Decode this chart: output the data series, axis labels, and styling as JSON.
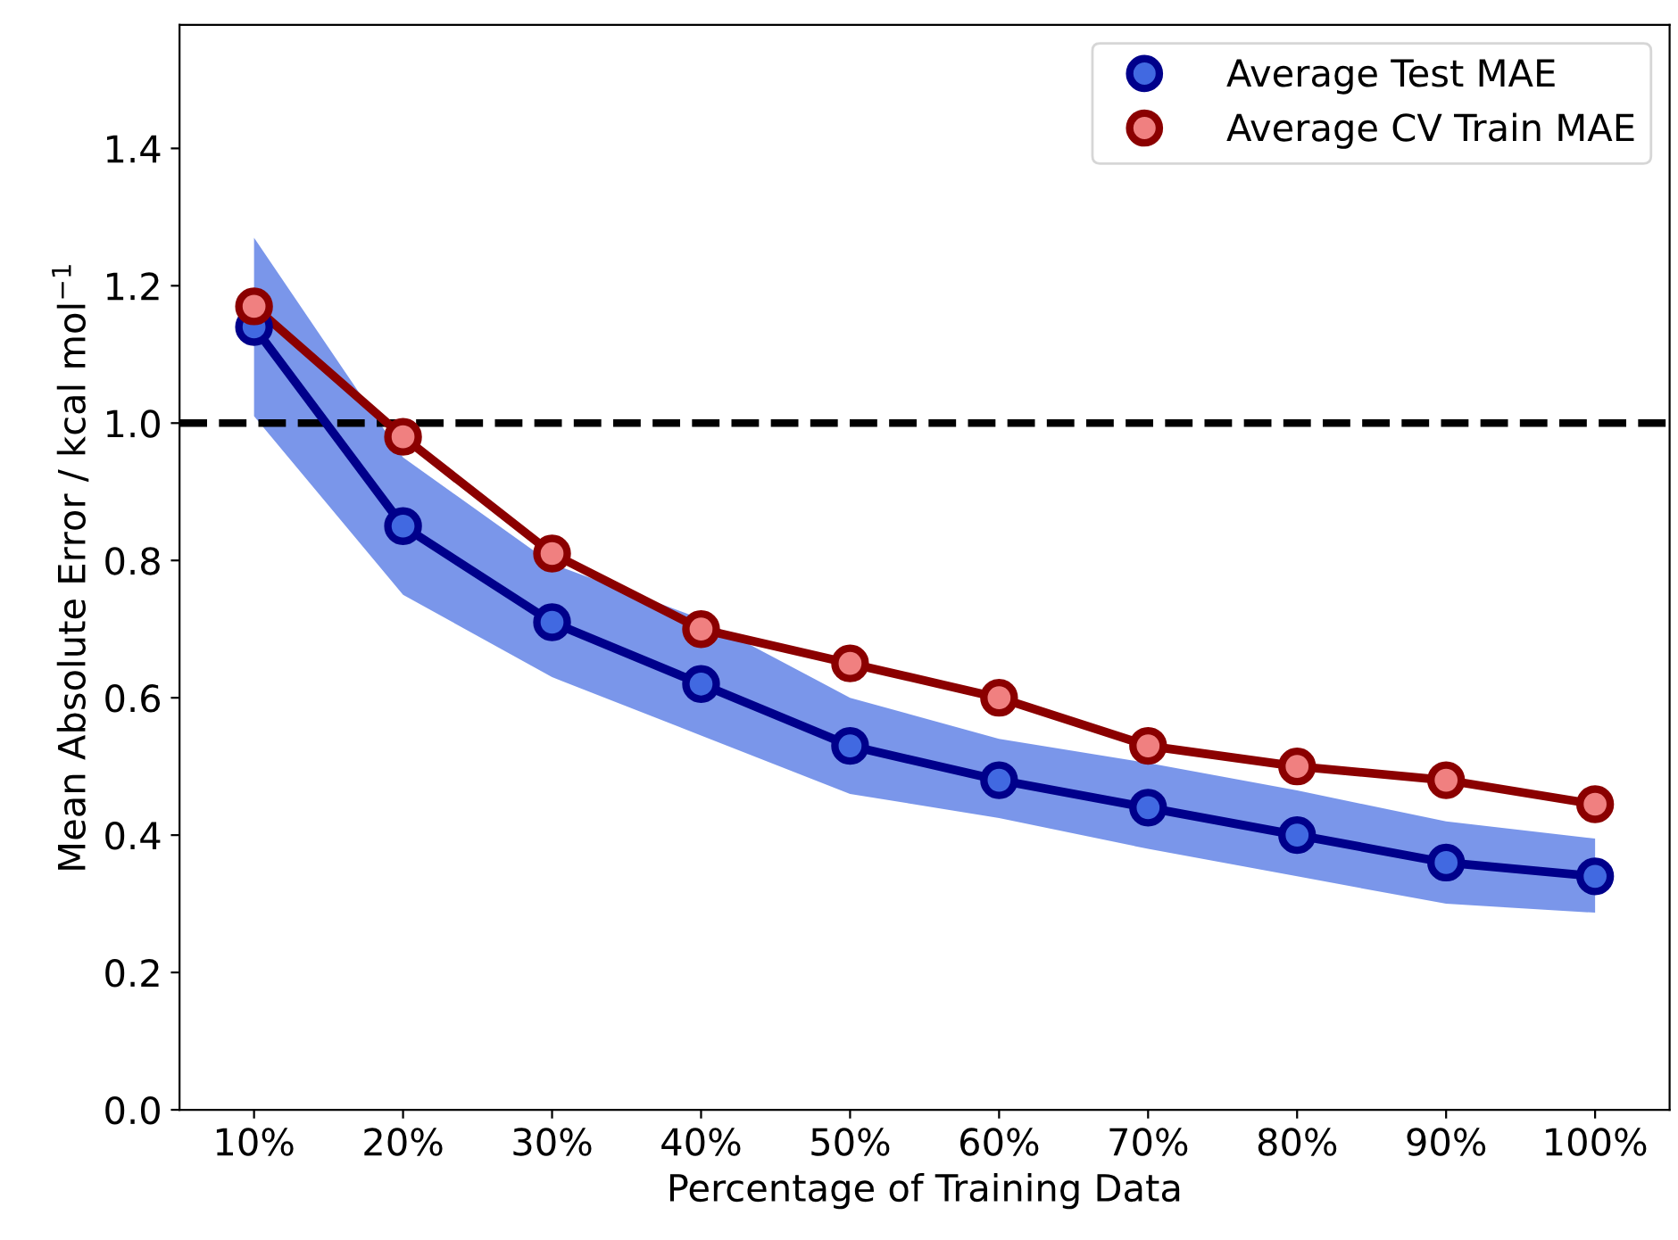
{
  "chart_data": {
    "type": "line",
    "xlabel": "Percentage of Training Data",
    "ylabel": "Mean Absolute Error / kcal mol$^{−1}$",
    "categories": [
      "10%",
      "20%",
      "30%",
      "40%",
      "50%",
      "60%",
      "70%",
      "80%",
      "90%",
      "100%"
    ],
    "series": [
      {
        "name": "Average Test MAE",
        "color": "#00008b",
        "colors": [
          "#4169e1",
          "#4169e1",
          "#4169e1",
          "#4169e1",
          "#4169e1",
          "#4169e1",
          "#4169e1",
          "#4169e1",
          "#4169e1",
          "#4169e1"
        ],
        "values": [
          1.14,
          0.85,
          0.71,
          0.62,
          0.53,
          0.48,
          0.44,
          0.4,
          0.36,
          0.34
        ],
        "lower": [
          1.01,
          0.75,
          0.63,
          0.545,
          0.46,
          0.425,
          0.38,
          0.34,
          0.3,
          0.287
        ],
        "upper": [
          1.27,
          0.95,
          0.795,
          0.715,
          0.6,
          0.54,
          0.505,
          0.465,
          0.42,
          0.395
        ]
      },
      {
        "name": "Average CV Train MAE",
        "color": "#8b0000",
        "colors": [
          "#f08080",
          "#f08080",
          "#f08080",
          "#f08080",
          "#f08080",
          "#f08080",
          "#f08080",
          "#f08080",
          "#f08080",
          "#f08080"
        ],
        "values": [
          1.17,
          0.98,
          0.81,
          0.7,
          0.65,
          0.6,
          0.53,
          0.5,
          0.48,
          0.445
        ]
      }
    ],
    "ylim": [
      0,
      1.58
    ],
    "yticks": [
      {
        "value": 0,
        "label": "0.0"
      },
      0.2,
      0.4,
      0.6,
      0.8,
      {
        "value": 1,
        "label": "1.0"
      },
      1.2,
      1.4
    ],
    "ref_lines": [
      {
        "axis": "y",
        "value": 1.0,
        "color": "#000000",
        "line_style": "dashed"
      }
    ],
    "marker": "circle",
    "line_style": "solid",
    "legend": "top right",
    "grid": false
  }
}
